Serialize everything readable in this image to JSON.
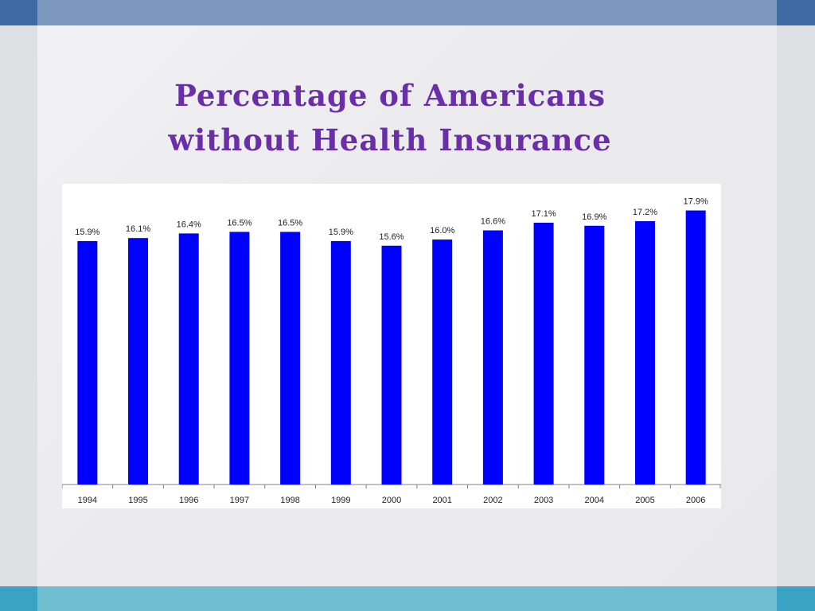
{
  "theme": {
    "top_band": "#7b97bd",
    "top_corner": "#3f6aa1",
    "bottom_band": "#6fbed2",
    "bottom_corner": "#3aa3c4",
    "title_color": "#6a2fa8",
    "bar_color": "#0000ff"
  },
  "slide": {
    "title_line1": "Percentage of Americans",
    "title_line2": "without Health Insurance"
  },
  "chart_data": {
    "type": "bar",
    "title": "",
    "xlabel": "",
    "ylabel": "",
    "categories": [
      "1994",
      "1995",
      "1996",
      "1997",
      "1998",
      "1999",
      "2000",
      "2001",
      "2002",
      "2003",
      "2004",
      "2005",
      "2006"
    ],
    "values": [
      15.9,
      16.1,
      16.4,
      16.5,
      16.5,
      15.9,
      15.6,
      16.0,
      16.6,
      17.1,
      16.9,
      17.2,
      17.9
    ],
    "value_labels": [
      "15.9%",
      "16.1%",
      "16.4%",
      "16.5%",
      "16.5%",
      "15.9%",
      "15.6%",
      "16.0%",
      "16.6%",
      "17.1%",
      "16.9%",
      "17.2%",
      "17.9%"
    ],
    "ylim": [
      0,
      18.5
    ],
    "grid": false,
    "legend": "none"
  }
}
